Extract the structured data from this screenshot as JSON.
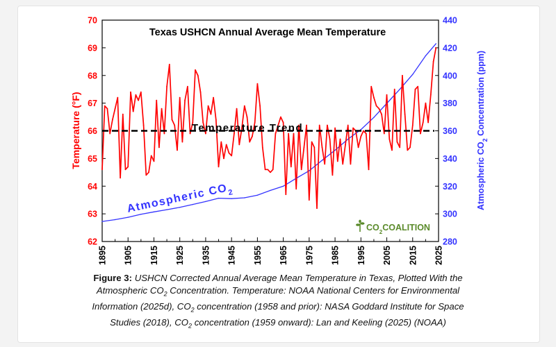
{
  "chart_data": {
    "type": "line",
    "title": "Texas USHCN Annual Average Mean Temperature",
    "xlim": [
      1895,
      2025
    ],
    "x_ticks": [
      "1895",
      "1905",
      "1915",
      "1925",
      "1935",
      "1945",
      "1955",
      "1965",
      "1975",
      "1985",
      "1995",
      "2005",
      "2015",
      "2025"
    ],
    "ylabel_left": "Temperature (°F)",
    "ylim_left": [
      62,
      70
    ],
    "y_ticks_left": [
      "62",
      "63",
      "64",
      "65",
      "66",
      "67",
      "68",
      "69",
      "70"
    ],
    "ylabel_right_prefix": "Atmospheric CO",
    "ylabel_right_sub": "2",
    "ylabel_right_suffix": " Concentration (ppm)",
    "ylim_right": [
      280,
      440
    ],
    "y_ticks_right": [
      "280",
      "300",
      "320",
      "340",
      "360",
      "380",
      "400",
      "420",
      "440"
    ],
    "grid": false,
    "colors": {
      "temperature": "#ff0000",
      "co2": "#3333ff",
      "trend": "#000000",
      "axis": "#000000",
      "left_axis_text": "#ff0000",
      "right_axis_text": "#3333ff",
      "logo": "#5a8a2a"
    },
    "series": [
      {
        "name": "Temperature",
        "axis": "left",
        "x": [
          1895,
          1896,
          1897,
          1898,
          1899,
          1900,
          1901,
          1902,
          1903,
          1904,
          1905,
          1906,
          1907,
          1908,
          1909,
          1910,
          1911,
          1912,
          1913,
          1914,
          1915,
          1916,
          1917,
          1918,
          1919,
          1920,
          1921,
          1922,
          1923,
          1924,
          1925,
          1926,
          1927,
          1928,
          1929,
          1930,
          1931,
          1932,
          1933,
          1934,
          1935,
          1936,
          1937,
          1938,
          1939,
          1940,
          1941,
          1942,
          1943,
          1944,
          1945,
          1946,
          1947,
          1948,
          1949,
          1950,
          1951,
          1952,
          1953,
          1954,
          1955,
          1956,
          1957,
          1958,
          1959,
          1960,
          1961,
          1962,
          1963,
          1964,
          1965,
          1966,
          1967,
          1968,
          1969,
          1970,
          1971,
          1972,
          1973,
          1974,
          1975,
          1976,
          1977,
          1978,
          1979,
          1980,
          1981,
          1982,
          1983,
          1984,
          1985,
          1986,
          1987,
          1988,
          1989,
          1990,
          1991,
          1992,
          1993,
          1994,
          1995,
          1996,
          1997,
          1998,
          1999,
          2000,
          2001,
          2002,
          2003,
          2004,
          2005,
          2006,
          2007,
          2008,
          2009,
          2010,
          2011,
          2012,
          2013,
          2014,
          2015,
          2016,
          2017,
          2018,
          2019,
          2020,
          2021,
          2022,
          2023,
          2024
        ],
        "values": [
          64.6,
          66.9,
          66.8,
          65.9,
          66.4,
          66.8,
          67.2,
          64.3,
          66.6,
          64.6,
          64.7,
          67.4,
          66.7,
          67.3,
          67.1,
          67.4,
          66.2,
          64.4,
          64.5,
          65.1,
          64.9,
          67.1,
          65.4,
          66.8,
          65.9,
          67.6,
          68.4,
          66.4,
          66.2,
          65.3,
          67.2,
          65.6,
          67.1,
          67.6,
          65.9,
          66.3,
          68.2,
          68.0,
          67.4,
          66.3,
          65.9,
          66.9,
          66.6,
          67.2,
          66.4,
          64.7,
          65.6,
          65.0,
          65.5,
          65.2,
          65.1,
          65.9,
          66.8,
          65.5,
          66.1,
          66.9,
          66.5,
          65.6,
          65.8,
          66.3,
          67.7,
          66.9,
          65.4,
          64.6,
          64.6,
          64.5,
          64.6,
          65.9,
          66.2,
          66.5,
          66.3,
          63.7,
          65.9,
          64.7,
          65.9,
          63.9,
          66.2,
          64.6,
          65.4,
          66.2,
          63.5,
          65.6,
          65.4,
          63.2,
          66.2,
          65.4,
          64.8,
          66.2,
          65.7,
          64.4,
          66.1,
          64.9,
          65.7,
          64.8,
          65.5,
          66.2,
          64.8,
          66.1,
          66.0,
          65.4,
          65.8,
          66.0,
          65.9,
          64.6,
          67.6,
          67.2,
          66.9,
          66.8,
          66.6,
          65.9,
          67.3,
          65.7,
          65.3,
          67.5,
          65.6,
          65.4,
          68.0,
          66.6,
          65.3,
          65.4,
          66.2,
          67.5,
          67.6,
          65.9,
          66.3,
          67.0,
          66.3,
          67.3,
          68.5,
          69.0
        ]
      },
      {
        "name": "Atmospheric CO2",
        "axis": "right",
        "x": [
          1895,
          1900,
          1905,
          1910,
          1915,
          1920,
          1925,
          1930,
          1935,
          1940,
          1945,
          1950,
          1955,
          1960,
          1965,
          1970,
          1975,
          1980,
          1985,
          1990,
          1995,
          2000,
          2005,
          2010,
          2015,
          2020,
          2024
        ],
        "values": [
          294.5,
          295.8,
          297.5,
          299.7,
          301.4,
          303.0,
          304.7,
          306.8,
          308.9,
          311.3,
          311.0,
          311.6,
          313.5,
          316.9,
          320.0,
          325.7,
          331.1,
          338.7,
          346.0,
          354.0,
          360.9,
          369.7,
          379.8,
          390.0,
          400.8,
          414.2,
          423.0
        ]
      }
    ],
    "trend": {
      "label": "Temperature Trend",
      "value": 66.0,
      "x": [
        1895,
        2025
      ]
    },
    "annotation_co2_prefix": "Atmospheric CO",
    "annotation_co2_sub": "2",
    "logo": {
      "prefix": "CO",
      "sub": "2",
      "suffix": "COALITION"
    }
  },
  "caption": {
    "figure_label": "Figure 3:",
    "line1_a": " USHCN Corrected Annual Average Mean Temperature in Texas, Plotted With the",
    "line2_a": "Atmospheric CO",
    "line2_sub": "2",
    "line2_b": " Concentration. Temperature: NOAA National Centers for Environmental",
    "line3_a": "Information (2025d), CO",
    "line3_sub": "2",
    "line3_b": " concentration (1958 and prior): NASA Goddard Institute for Space",
    "line4_a": "Studies (2018), CO",
    "line4_sub": "2",
    "line4_b": " concentration (1959 onward): Lan and Keeling (2025) (NOAA)"
  }
}
